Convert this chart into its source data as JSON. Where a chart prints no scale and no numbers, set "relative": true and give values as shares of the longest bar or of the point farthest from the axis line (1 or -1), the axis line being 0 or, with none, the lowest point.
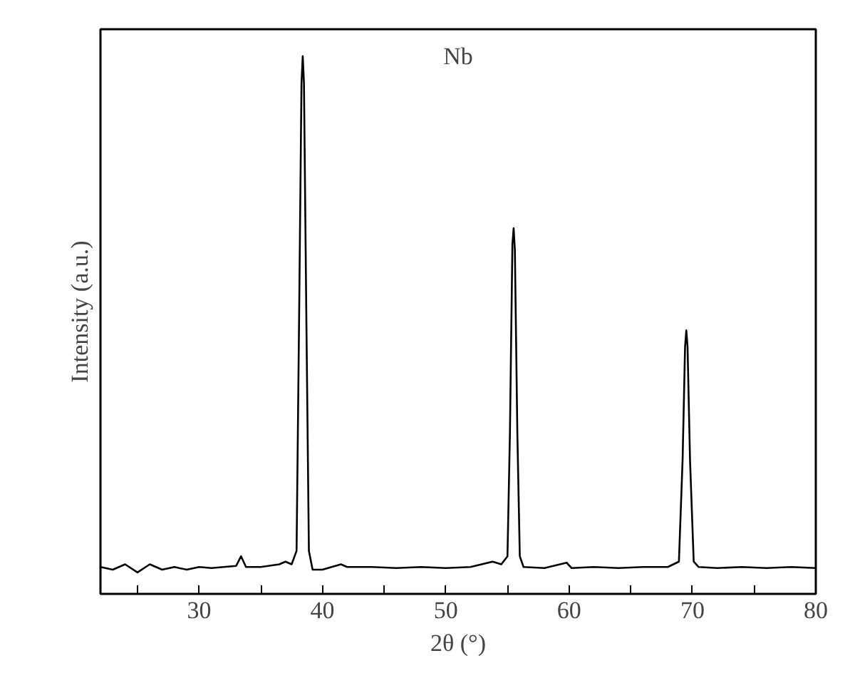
{
  "chart_data": {
    "type": "line",
    "title": "Nb",
    "xlabel": "2θ (°)",
    "ylabel": "Intensity (a.u.)",
    "relative": true,
    "xlim": [
      22,
      80
    ],
    "xticks": [
      {
        "value": 25,
        "label": null
      },
      30,
      {
        "value": 35,
        "label": null
      },
      40,
      {
        "value": 45,
        "label": null
      },
      50,
      {
        "value": 55,
        "label": null
      },
      60,
      {
        "value": 65,
        "label": null
      },
      70,
      {
        "value": 75,
        "label": null
      },
      80
    ],
    "series": [
      {
        "color": "#000000",
        "x": [
          22,
          23,
          24,
          25,
          26,
          27,
          28,
          29,
          30,
          31,
          32,
          33,
          33.4,
          33.8,
          35,
          36.5,
          37,
          37.5,
          37.9,
          38.1,
          38.3,
          38.4,
          38.5,
          38.7,
          38.9,
          39.2,
          40,
          41.5,
          42,
          44,
          46,
          48,
          50,
          52,
          53.8,
          54.5,
          55,
          55.2,
          55.4,
          55.5,
          55.6,
          55.8,
          56,
          56.3,
          58,
          59.8,
          60.2,
          62,
          64,
          66,
          68,
          68.9,
          69.2,
          69.4,
          69.5,
          69.6,
          69.8,
          70.1,
          70.5,
          72,
          74,
          76,
          78,
          80
        ],
        "values": [
          0.05,
          0.045,
          0.055,
          0.04,
          0.055,
          0.045,
          0.05,
          0.045,
          0.05,
          0.048,
          0.05,
          0.052,
          0.07,
          0.05,
          0.05,
          0.055,
          0.06,
          0.055,
          0.08,
          0.5,
          0.95,
          1,
          0.95,
          0.5,
          0.08,
          0.045,
          0.045,
          0.055,
          0.05,
          0.05,
          0.048,
          0.05,
          0.048,
          0.05,
          0.06,
          0.055,
          0.07,
          0.3,
          0.65,
          0.68,
          0.64,
          0.3,
          0.07,
          0.05,
          0.048,
          0.058,
          0.048,
          0.05,
          0.048,
          0.05,
          0.05,
          0.06,
          0.25,
          0.46,
          0.49,
          0.46,
          0.25,
          0.06,
          0.05,
          0.048,
          0.05,
          0.048,
          0.05,
          0.048
        ]
      }
    ]
  }
}
